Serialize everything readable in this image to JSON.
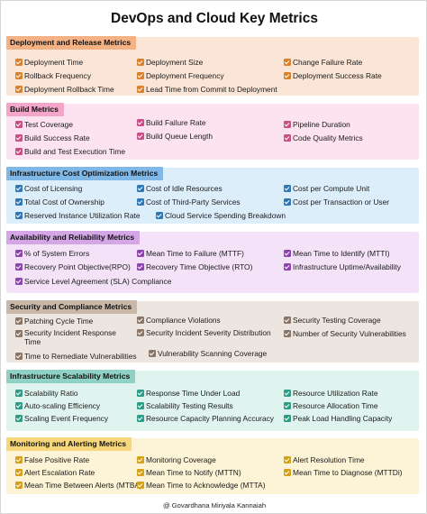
{
  "title": "DevOps and Cloud Key Metrics",
  "footer": "@ Govardhana Miriyala Kannaiah",
  "sections": [
    {
      "title": "Deployment and Release Metrics",
      "colors": {
        "bg": "#fbe5d6",
        "header": "#f4b183",
        "check": "#d9822b"
      },
      "items": [
        "Deployment Time",
        "Deployment Size",
        "Change Failure Rate",
        "Rollback Frequency",
        "Deployment Frequency",
        "Deployment Success Rate",
        "Deployment Rollback Time",
        "Lead Time from Commit to Deployment"
      ]
    },
    {
      "title": "Build Metrics",
      "colors": {
        "bg": "#fde3ef",
        "header": "#f4a6c8",
        "check": "#c94f86"
      },
      "items": [
        "Test Coverage",
        "Build Failure Rate",
        "Pipeline Duration",
        "Build Success Rate",
        "Build Queue Length",
        "Code Quality Metrics",
        "Build and Test Execution Time"
      ]
    },
    {
      "title": "Infrastructure Cost Optimization Metrics",
      "colors": {
        "bg": "#ddeefb",
        "header": "#7fb8e6",
        "check": "#2f78b5"
      },
      "items": [
        "Cost of Licensing",
        "Cost of Idle Resources",
        "Cost per Compute Unit",
        "Total Cost of Ownership",
        "Cost of Third-Party Services",
        "Cost per Transaction or User",
        "Reserved Instance Utilization Rate",
        "Cloud Service Spending Breakdown"
      ]
    },
    {
      "title": "Availability and Reliability Metrics",
      "colors": {
        "bg": "#f3e2f8",
        "header": "#d4a6e6",
        "check": "#8e44ad"
      },
      "items": [
        "% of System Errors",
        "Mean Time to Failure (MTTF)",
        "Mean Time to Identify (MTTI)",
        "Recovery Point Objective(RPO)",
        "Recovery Time Objective (RTO)",
        "Infrastructure Uptime/Availability",
        "Service Level Agreement (SLA) Compliance"
      ]
    },
    {
      "title": "Security and Compliance Metrics",
      "colors": {
        "bg": "#ede6e0",
        "header": "#c9b7a8",
        "check": "#8a7667"
      },
      "items": [
        "Patching Cycle Time",
        "Compliance Violations",
        "Security Testing Coverage",
        "Security Incident Response Time",
        "Security Incident Severity Distribution",
        "Number of Security Vulnerabilities",
        "Time to Remediate Vulnerabilities",
        "Vulnerability Scanning Coverage"
      ]
    },
    {
      "title": "Infrastructure Scalability Metrics",
      "colors": {
        "bg": "#dff3ef",
        "header": "#8fd1c4",
        "check": "#2e9c86"
      },
      "items": [
        "Scalability Ratio",
        "Response Time Under Load",
        "Resource Utilization Rate",
        "Auto-scaling Efficiency",
        "Scalability Testing Results",
        "Resource Allocation Time",
        "Scaling Event Frequency",
        "Resource Capacity Planning Accuracy",
        "Peak Load Handling Capacity"
      ]
    },
    {
      "title": "Monitoring and Alerting Metrics",
      "colors": {
        "bg": "#fdf3d6",
        "header": "#f6d77a",
        "check": "#d4a017"
      },
      "items": [
        "False Positive Rate",
        "Monitoring Coverage",
        "Alert Resolution Time",
        "Alert Escalation Rate",
        "Mean Time to Notify (MTTN)",
        "Mean Time to Diagnose (MTTDi)",
        "Mean Time Between Alerts (MTBA)",
        "Mean Time to Acknowledge (MTTA)"
      ]
    }
  ]
}
